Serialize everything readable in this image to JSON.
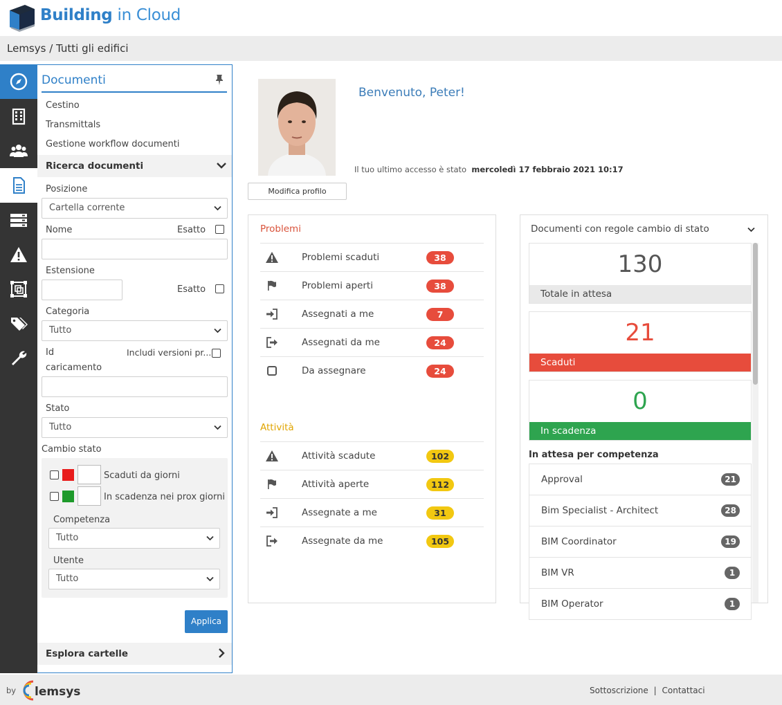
{
  "brand": {
    "name_bold": "Building",
    "name_light": " in Cloud",
    "footer_by": "by",
    "footer_logo": "lemsys"
  },
  "breadcrumb": "Lemsys / Tutti gli edifici",
  "rail": [
    {
      "icon": "compass-icon"
    },
    {
      "icon": "building-icon"
    },
    {
      "icon": "users-icon"
    },
    {
      "icon": "document-icon"
    },
    {
      "icon": "server-icon"
    },
    {
      "icon": "warning-icon"
    },
    {
      "icon": "bim-model-icon"
    },
    {
      "icon": "tags-icon"
    },
    {
      "icon": "wrench-icon"
    }
  ],
  "sidebar": {
    "title": "Documenti",
    "links": [
      "Cestino",
      "Transmittals",
      "Gestione workflow documenti"
    ],
    "search_section": "Ricerca documenti",
    "posizione_label": "Posizione",
    "posizione_value": "Cartella corrente",
    "nome_label": "Nome",
    "esatto_label": "Esatto",
    "estensione_label": "Estensione",
    "categoria_label": "Categoria",
    "categoria_value": "Tutto",
    "id_label_1": "Id",
    "id_label_2": "caricamento",
    "includi_label": "Includi versioni pr...",
    "stato_label": "Stato",
    "stato_value": "Tutto",
    "cambio_stato_label": "Cambio stato",
    "scaduti_giorni": "Scaduti da giorni",
    "scadenza_giorni": "In scadenza nei prox giorni",
    "competenza_label": "Competenza",
    "competenza_value": "Tutto",
    "utente_label": "Utente",
    "utente_value": "Tutto",
    "apply": "Applica",
    "explore": "Esplora cartelle"
  },
  "profile": {
    "welcome": "Benvenuto, Peter!",
    "last_access_label": "Il tuo ultimo accesso è stato",
    "last_access_value": "mercoledì 17 febbraio 2021 10:17",
    "edit_button": "Modifica profilo"
  },
  "problems": {
    "title": "Problemi",
    "rows": [
      {
        "icon": "warning-icon",
        "label": "Problemi scaduti",
        "count": "38"
      },
      {
        "icon": "flag-icon",
        "label": "Problemi aperti",
        "count": "38"
      },
      {
        "icon": "sign-in-icon",
        "label": "Assegnati a me",
        "count": "7"
      },
      {
        "icon": "sign-out-icon",
        "label": "Assegnati da me",
        "count": "24"
      },
      {
        "icon": "square-icon",
        "label": "Da assegnare",
        "count": "24"
      }
    ]
  },
  "activities": {
    "title": "Attività",
    "rows": [
      {
        "icon": "warning-icon",
        "label": "Attività scadute",
        "count": "102"
      },
      {
        "icon": "flag-icon",
        "label": "Attività aperte",
        "count": "112"
      },
      {
        "icon": "sign-in-icon",
        "label": "Assegnate a me",
        "count": "31"
      },
      {
        "icon": "sign-out-icon",
        "label": "Assegnate da me",
        "count": "105"
      }
    ]
  },
  "docs_state": {
    "title": "Documenti con regole cambio di stato",
    "total_value": "130",
    "total_label": "Totale in attesa",
    "expired_value": "21",
    "expired_label": "Scaduti",
    "expiring_value": "0",
    "expiring_label": "In scadenza",
    "by_role_title": "In attesa per competenza",
    "roles": [
      {
        "label": "Approval",
        "count": "21"
      },
      {
        "label": "Bim Specialist - Architect",
        "count": "28"
      },
      {
        "label": "BIM Coordinator",
        "count": "19"
      },
      {
        "label": "BIM VR",
        "count": "1"
      },
      {
        "label": "BIM Operator",
        "count": "1"
      }
    ]
  },
  "footer": {
    "subscription": "Sottoscrizione",
    "separator": "|",
    "contacts": "Contattaci"
  },
  "colors": {
    "accent": "#2f80c8",
    "red": "#e74c3c",
    "green": "#2ea44f",
    "yellow": "#f2c811",
    "rail": "#343434"
  }
}
